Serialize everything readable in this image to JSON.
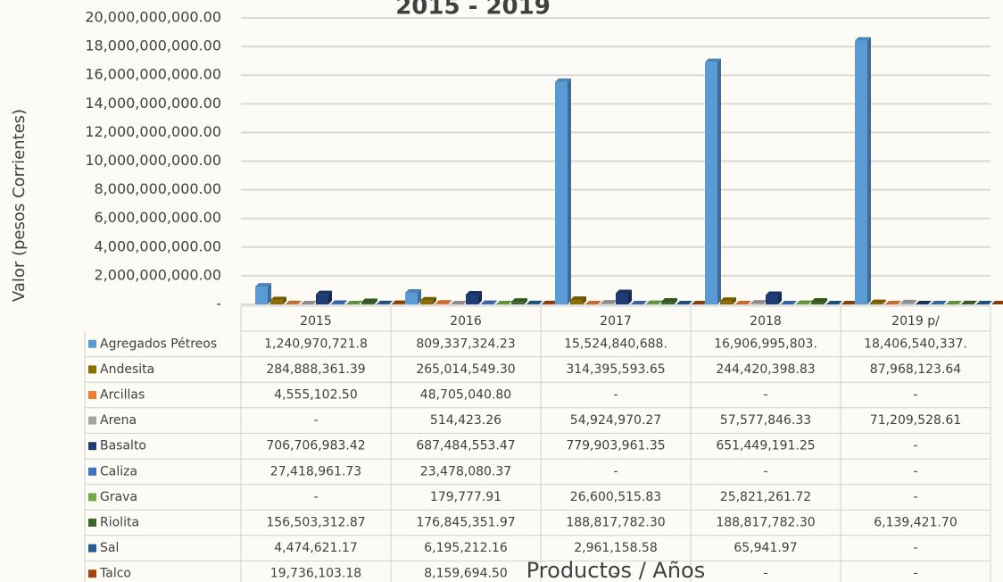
{
  "chart_data": {
    "type": "bar",
    "title": "2015 - 2019",
    "y_label": "Valor (pesos Corrientes)",
    "x_label": "Productos / Años",
    "categories": [
      "2015",
      "2016",
      "2017",
      "2018",
      "2019 p/"
    ],
    "ylim": [
      0,
      20000000000
    ],
    "yticks": [
      {
        "value": 0,
        "label": "-"
      },
      {
        "value": 2000000000,
        "label": "2,000,000,000.00"
      },
      {
        "value": 4000000000,
        "label": "4,000,000,000.00"
      },
      {
        "value": 6000000000,
        "label": "6,000,000,000.00"
      },
      {
        "value": 8000000000,
        "label": "8,000,000,000.00"
      },
      {
        "value": 10000000000,
        "label": "10,000,000,000.00"
      },
      {
        "value": 12000000000,
        "label": "12,000,000,000.00"
      },
      {
        "value": 14000000000,
        "label": "14,000,000,000.00"
      },
      {
        "value": 16000000000,
        "label": "16,000,000,000.00"
      },
      {
        "value": 18000000000,
        "label": "18,000,000,000.00"
      },
      {
        "value": 20000000000,
        "label": "20,000,000,000.00"
      }
    ],
    "grid": true,
    "series": [
      {
        "name": "Agregados Pétreos",
        "color": "#5b9bd5",
        "values": [
          1240970721.8,
          809337324.23,
          15524840688,
          16906995803,
          18406540337
        ],
        "value_labels": [
          "1,240,970,721.8",
          "809,337,324.23",
          "15,524,840,688.",
          "16,906,995,803.",
          "18,406,540,337."
        ]
      },
      {
        "name": "Andesita",
        "color": "#8c6d00",
        "values": [
          284888361.39,
          265014549.3,
          314395593.65,
          244420398.83,
          87968123.64
        ],
        "value_labels": [
          "284,888,361.39",
          "265,014,549.30",
          "314,395,593.65",
          "244,420,398.83",
          "87,968,123.64"
        ]
      },
      {
        "name": "Arcillas",
        "color": "#ed7d31",
        "values": [
          4555102.5,
          48705040.8,
          0,
          0,
          0
        ],
        "value_labels": [
          "4,555,102.50",
          "48,705,040.80",
          "-",
          "-",
          "-"
        ]
      },
      {
        "name": "Arena",
        "color": "#a5a5a5",
        "values": [
          0,
          514423.26,
          54924970.27,
          57577846.33,
          71209528.61
        ],
        "value_labels": [
          "-",
          "514,423.26",
          "54,924,970.27",
          "57,577,846.33",
          "71,209,528.61"
        ]
      },
      {
        "name": "Basalto",
        "color": "#1f3c74",
        "values": [
          706706983.42,
          687484553.47,
          779903961.35,
          651449191.25,
          0
        ],
        "value_labels": [
          "706,706,983.42",
          "687,484,553.47",
          "779,903,961.35",
          "651,449,191.25",
          "-"
        ]
      },
      {
        "name": "Caliza",
        "color": "#3d74c4",
        "values": [
          27418961.73,
          23478080.37,
          0,
          0,
          0
        ],
        "value_labels": [
          "27,418,961.73",
          "23,478,080.37",
          "-",
          "-",
          "-"
        ]
      },
      {
        "name": "Grava",
        "color": "#70ad47",
        "values": [
          0,
          179777.91,
          26600515.83,
          25821261.72,
          0
        ],
        "value_labels": [
          "-",
          "179,777.91",
          "26,600,515.83",
          "25,821,261.72",
          "-"
        ]
      },
      {
        "name": "Riolita",
        "color": "#3f6628",
        "values": [
          156503312.87,
          176845351.97,
          188817782.3,
          188817782.3,
          6139421.7
        ],
        "value_labels": [
          "156,503,312.87",
          "176,845,351.97",
          "188,817,782.30",
          "188,817,782.30",
          "6,139,421.70"
        ]
      },
      {
        "name": "Sal",
        "color": "#255e91",
        "values": [
          4474621.17,
          6195212.16,
          2961158.58,
          65941.97,
          0
        ],
        "value_labels": [
          "4,474,621.17",
          "6,195,212.16",
          "2,961,158.58",
          "65,941.97",
          "-"
        ]
      },
      {
        "name": "Talco",
        "color": "#9e480e",
        "values": [
          19736103.18,
          8159694.5,
          0,
          0,
          0
        ],
        "value_labels": [
          "19,736,103.18",
          "8,159,694.50",
          "-",
          "-",
          "-"
        ]
      }
    ]
  }
}
